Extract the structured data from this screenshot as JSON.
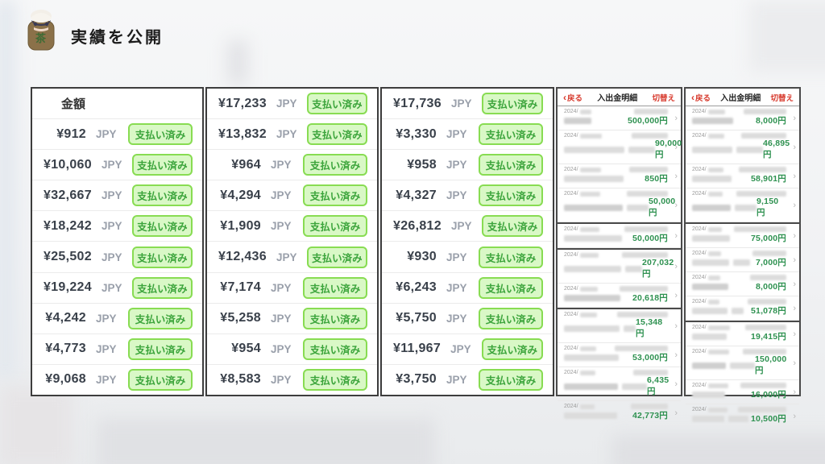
{
  "page": {
    "title": "実績を公開"
  },
  "amount_table": {
    "header_label": "金額",
    "currency": "JPY",
    "paid_label": "支払い済み",
    "columns": [
      [
        "¥912",
        "¥10,060",
        "¥32,667",
        "¥18,242",
        "¥25,502",
        "¥19,224",
        "¥4,242",
        "¥4,773",
        "¥9,068"
      ],
      [
        "¥17,233",
        "¥13,832",
        "¥964",
        "¥4,294",
        "¥1,909",
        "¥12,436",
        "¥7,174",
        "¥5,258",
        "¥954",
        "¥8,583"
      ],
      [
        "¥17,736",
        "¥3,330",
        "¥958",
        "¥4,327",
        "¥26,812",
        "¥930",
        "¥6,243",
        "¥5,750",
        "¥11,967",
        "¥3,750"
      ]
    ]
  },
  "statement_panels": {
    "back_label": "戻る",
    "back_icon": "‹",
    "title": "入出金明細",
    "switch_label": "切替え",
    "date_prefix": "2024/",
    "row_chevron": "›",
    "panels": [
      {
        "amounts": [
          "500,000円",
          "90,000円",
          "850円",
          "50,000円",
          "50,000円",
          "207,032円",
          "20,618円",
          "15,348円",
          "53,000円",
          "6,435円",
          "42,773円"
        ],
        "section_breaks": [
          4,
          5,
          7
        ]
      },
      {
        "amounts": [
          "8,000円",
          "46,895円",
          "58,901円",
          "9,150円",
          "75,000円",
          "7,000円",
          "8,000円",
          "51,078円",
          "19,415円",
          "150,000円",
          "16,000円",
          "10,500円"
        ],
        "section_breaks": [
          4,
          8
        ]
      }
    ]
  },
  "colors": {
    "badge_bg": "#d9f8c6",
    "badge_border": "#88dc52",
    "badge_text": "#3ba43b",
    "panel_red": "#d7382b",
    "panel_green": "#2e9150",
    "jpy_text": "#9aa0ab"
  }
}
